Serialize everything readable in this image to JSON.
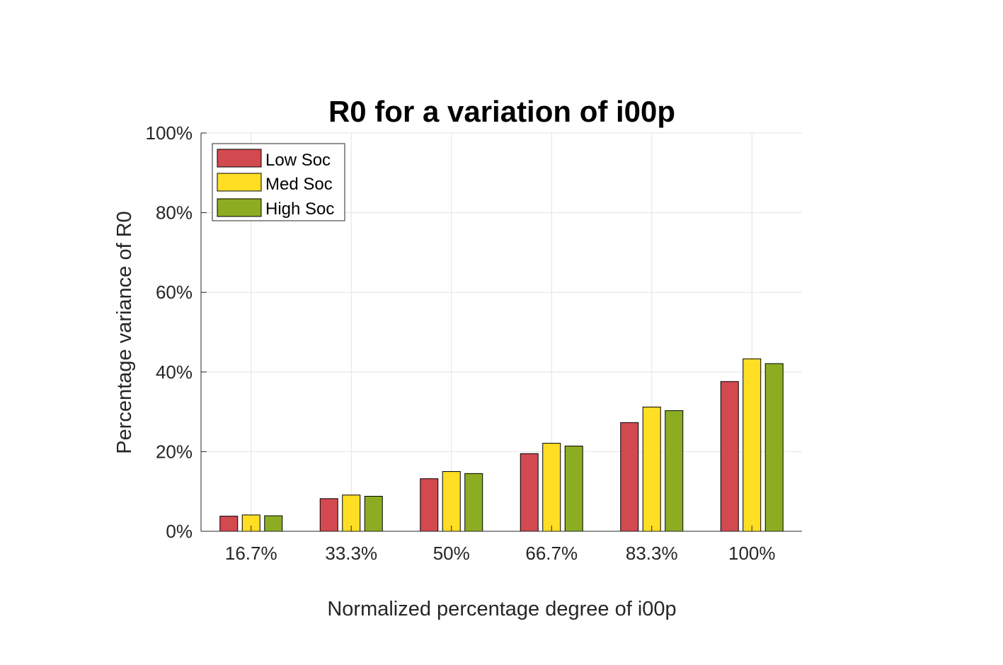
{
  "chart_data": {
    "type": "bar",
    "title": "R0 for a variation of i00p",
    "xlabel": "Normalized percentage degree of i00p",
    "ylabel": "Percentage variance of R0",
    "categories": [
      "16.7%",
      "33.3%",
      "50%",
      "66.7%",
      "83.3%",
      "100%"
    ],
    "series": [
      {
        "name": "Low Soc",
        "color": "#d34950",
        "values": [
          3.8,
          8.2,
          13.2,
          19.5,
          27.3,
          37.6
        ]
      },
      {
        "name": "Med Soc",
        "color": "#ffde23",
        "values": [
          4.1,
          9.1,
          15.0,
          22.1,
          31.2,
          43.3
        ]
      },
      {
        "name": "High Soc",
        "color": "#8cad22",
        "values": [
          3.9,
          8.8,
          14.5,
          21.4,
          30.3,
          42.1
        ]
      }
    ],
    "ylim": [
      0,
      100
    ],
    "yticks": [
      0,
      20,
      40,
      60,
      80,
      100
    ],
    "ytick_labels": [
      "0%",
      "20%",
      "40%",
      "60%",
      "80%",
      "100%"
    ],
    "grid": true,
    "legend": "top-left"
  }
}
